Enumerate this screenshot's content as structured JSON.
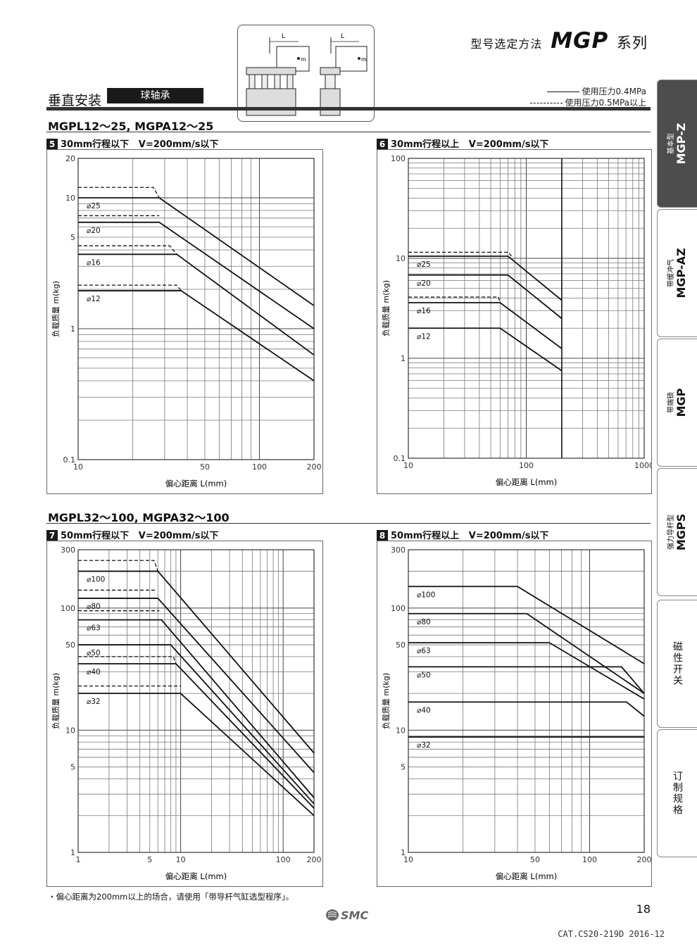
{
  "header": {
    "subtitle": "型号选定方法",
    "series_code": "MGP",
    "series_suffix": "系列"
  },
  "mounting": {
    "label": "垂直安装",
    "bearing": "球轴承",
    "diagram_l": "L",
    "diagram_m": "m"
  },
  "legend": {
    "solid": "使用压力0.4MPa",
    "dashed": "使用压力0.5MPa以上"
  },
  "sections": [
    {
      "title": "MGPL12～25, MGPA12～25"
    },
    {
      "title": "MGPL32～100, MGPA32～100"
    }
  ],
  "tabs": [
    {
      "sub": "基本型",
      "main": "MGP-Z",
      "active": true
    },
    {
      "sub": "带缓冲气",
      "main": "MGP-AZ",
      "active": false
    },
    {
      "sub": "带端锁",
      "main": "MGP",
      "active": false
    },
    {
      "sub": "强力导杆型",
      "main": "MGPS",
      "active": false
    },
    {
      "vertical": "磁性开关"
    },
    {
      "vertical": "订制规格"
    }
  ],
  "footnote": "・偏心距离为200mm以上的场合，请使用「带导杆气缸选型程序」。",
  "page_number": "18",
  "logo_text": "SMC",
  "catalog_code": "CAT.CS20-219D 2016-12",
  "chart_data": [
    {
      "id": "5",
      "type": "line",
      "title_stroke": "30mm行程以下",
      "title_speed": "V=200mm/s以下",
      "xlabel": "偏心距离 L(mm)",
      "ylabel": "负载质量 m(kg)",
      "xscale": "log",
      "yscale": "log",
      "xlim": [
        10,
        200
      ],
      "ylim": [
        0.1,
        20
      ],
      "xticks": [
        10,
        50,
        100,
        200
      ],
      "yticks": [
        0.1,
        1,
        5,
        10,
        20
      ],
      "series": [
        {
          "name": "⌀25",
          "points": [
            [
              10,
              10
            ],
            [
              28,
              10
            ],
            [
              200,
              1.5
            ]
          ],
          "dashed": [
            [
              10,
              12
            ],
            [
              26,
              12
            ],
            [
              28,
              10
            ]
          ]
        },
        {
          "name": "⌀20",
          "points": [
            [
              10,
              6.5
            ],
            [
              28,
              6.5
            ],
            [
              200,
              1.0
            ]
          ],
          "dashed": [
            [
              10,
              7.3
            ],
            [
              28,
              7.3
            ]
          ]
        },
        {
          "name": "⌀16",
          "points": [
            [
              10,
              3.7
            ],
            [
              35,
              3.7
            ],
            [
              200,
              0.63
            ]
          ],
          "dashed": [
            [
              10,
              4.3
            ],
            [
              32,
              4.3
            ],
            [
              35,
              3.7
            ]
          ]
        },
        {
          "name": "⌀12",
          "points": [
            [
              10,
              1.95
            ],
            [
              37,
              1.95
            ],
            [
              200,
              0.4
            ]
          ],
          "dashed": [
            [
              10,
              2.15
            ],
            [
              35,
              2.15
            ],
            [
              37,
              1.95
            ]
          ]
        }
      ]
    },
    {
      "id": "6",
      "type": "line",
      "title_stroke": "30mm行程以上",
      "title_speed": "V=200mm/s以下",
      "xlabel": "偏心距离 L(mm)",
      "ylabel": "负载质量 m(kg)",
      "xscale": "log",
      "yscale": "log",
      "xlim": [
        10,
        1000
      ],
      "ylim": [
        0.1,
        100
      ],
      "xticks": [
        10,
        100,
        1000
      ],
      "yticks": [
        0.1,
        1,
        10,
        100
      ],
      "series": [
        {
          "name": "⌀25",
          "points": [
            [
              10,
              10.5
            ],
            [
              70,
              10.5
            ],
            [
              200,
              3.8
            ]
          ],
          "dashed": [
            [
              10,
              11.5
            ],
            [
              70,
              11.5
            ],
            [
              75,
              10.5
            ]
          ]
        },
        {
          "name": "⌀20",
          "points": [
            [
              10,
              6.8
            ],
            [
              70,
              6.8
            ],
            [
              200,
              2.5
            ]
          ]
        },
        {
          "name": "⌀16",
          "points": [
            [
              10,
              3.6
            ],
            [
              60,
              3.6
            ],
            [
              200,
              1.25
            ]
          ],
          "dashed": [
            [
              10,
              4.1
            ],
            [
              58,
              4.1
            ],
            [
              60,
              3.6
            ]
          ]
        },
        {
          "name": "⌀12",
          "points": [
            [
              10,
              2.0
            ],
            [
              60,
              2.0
            ],
            [
              200,
              0.75
            ]
          ]
        }
      ],
      "vline": 200
    },
    {
      "id": "7",
      "type": "line",
      "title_stroke": "50mm行程以下",
      "title_speed": "V=200mm/s以下",
      "xlabel": "偏心距离 L(mm)",
      "ylabel": "负载质量 m(kg)",
      "xscale": "log",
      "yscale": "log",
      "xlim": [
        1,
        200
      ],
      "ylim": [
        1,
        300
      ],
      "xticks": [
        1,
        5,
        10,
        100,
        200
      ],
      "yticks": [
        1,
        5,
        10,
        50,
        100,
        300
      ],
      "series": [
        {
          "name": "⌀100",
          "points": [
            [
              1,
              200
            ],
            [
              6,
              200
            ],
            [
              200,
              6.5
            ]
          ],
          "dashed": [
            [
              1,
              245
            ],
            [
              5.5,
              245
            ],
            [
              6,
              200
            ]
          ]
        },
        {
          "name": "⌀80",
          "points": [
            [
              1,
              120
            ],
            [
              6,
              120
            ],
            [
              200,
              4.5
            ]
          ],
          "dashed": [
            [
              1,
              140
            ],
            [
              5.8,
              140
            ]
          ]
        },
        {
          "name": "⌀63",
          "points": [
            [
              1,
              80
            ],
            [
              6.5,
              80
            ],
            [
              200,
              2.8
            ]
          ],
          "dashed": [
            [
              1,
              95
            ],
            [
              6.2,
              95
            ]
          ]
        },
        {
          "name": "⌀50",
          "points": [
            [
              1,
              50
            ],
            [
              8,
              50
            ],
            [
              200,
              2.5
            ]
          ]
        },
        {
          "name": "⌀40",
          "points": [
            [
              1,
              35
            ],
            [
              9,
              35
            ],
            [
              200,
              2.3
            ]
          ],
          "dashed": [
            [
              1,
              40
            ],
            [
              8.5,
              40
            ],
            [
              9,
              35
            ]
          ]
        },
        {
          "name": "⌀32",
          "points": [
            [
              1,
              20
            ],
            [
              10,
              20
            ],
            [
              200,
              2.0
            ]
          ],
          "dashed": [
            [
              1,
              23
            ],
            [
              10,
              23
            ]
          ]
        }
      ]
    },
    {
      "id": "8",
      "type": "line",
      "title_stroke": "50mm行程以上",
      "title_speed": "V=200mm/s以下",
      "xlabel": "偏心距离 L(mm)",
      "ylabel": "负载质量 m(kg)",
      "xscale": "log",
      "yscale": "log",
      "xlim": [
        10,
        200
      ],
      "ylim": [
        1,
        300
      ],
      "xticks": [
        10,
        50,
        100,
        200
      ],
      "yticks": [
        1,
        5,
        10,
        50,
        100,
        300
      ],
      "series": [
        {
          "name": "⌀100",
          "points": [
            [
              10,
              150
            ],
            [
              40,
              150
            ],
            [
              200,
              35
            ]
          ]
        },
        {
          "name": "⌀80",
          "points": [
            [
              10,
              90
            ],
            [
              45,
              90
            ],
            [
              200,
              20
            ]
          ]
        },
        {
          "name": "⌀63",
          "points": [
            [
              10,
              52
            ],
            [
              60,
              52
            ],
            [
              200,
              18
            ]
          ]
        },
        {
          "name": "⌀50",
          "points": [
            [
              10,
              33
            ],
            [
              150,
              33
            ],
            [
              200,
              20
            ]
          ]
        },
        {
          "name": "⌀40",
          "points": [
            [
              10,
              17
            ],
            [
              160,
              17
            ],
            [
              200,
              13
            ]
          ]
        },
        {
          "name": "⌀32",
          "points": [
            [
              10,
              8.8
            ],
            [
              200,
              8.8
            ]
          ]
        }
      ]
    }
  ]
}
